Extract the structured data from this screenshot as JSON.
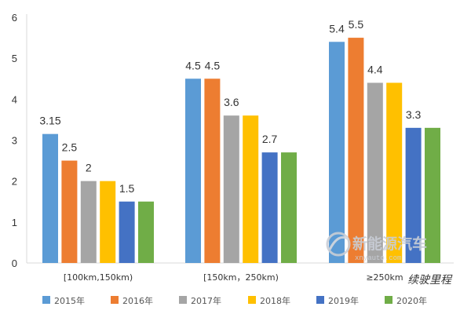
{
  "chart_data": {
    "type": "bar",
    "categories": [
      "[100km,150km)",
      "[150km，250km)",
      "≥250km"
    ],
    "series": [
      {
        "name": "2015年",
        "values": [
          3.15,
          4.5,
          5.4
        ],
        "color": "#5b9bd5"
      },
      {
        "name": "2016年",
        "values": [
          2.5,
          4.5,
          5.5
        ],
        "color": "#ed7d31"
      },
      {
        "name": "2017年",
        "values": [
          2,
          3.6,
          4.4
        ],
        "color": "#a5a5a5"
      },
      {
        "name": "2018年",
        "values": [
          2,
          3.6,
          4.4
        ],
        "color": "#ffc000"
      },
      {
        "name": "2019年",
        "values": [
          1.5,
          2.7,
          3.3
        ],
        "color": "#4472c4"
      },
      {
        "name": "2020年",
        "values": [
          1.5,
          2.7,
          3.3
        ],
        "color": "#70ad47"
      }
    ],
    "data_labels": [
      [
        "3.15",
        "4.5",
        "5.4"
      ],
      [
        "2.5",
        "4.5",
        "5.5"
      ],
      [
        "2",
        "3.6",
        "4.4"
      ],
      [
        "",
        "",
        ""
      ],
      [
        "1.5",
        "2.7",
        "3.3"
      ],
      [
        "",
        "",
        ""
      ]
    ],
    "yticks": [
      "0",
      "1",
      "2",
      "3",
      "4",
      "5",
      "6"
    ],
    "ylim": [
      0,
      6
    ],
    "xlabel": "续驶里程",
    "ylabel": "",
    "title": "",
    "grid": false,
    "legend_position": "bottom"
  },
  "watermark": {
    "text": "新能源汽车",
    "sub": "xnyauto.com"
  }
}
